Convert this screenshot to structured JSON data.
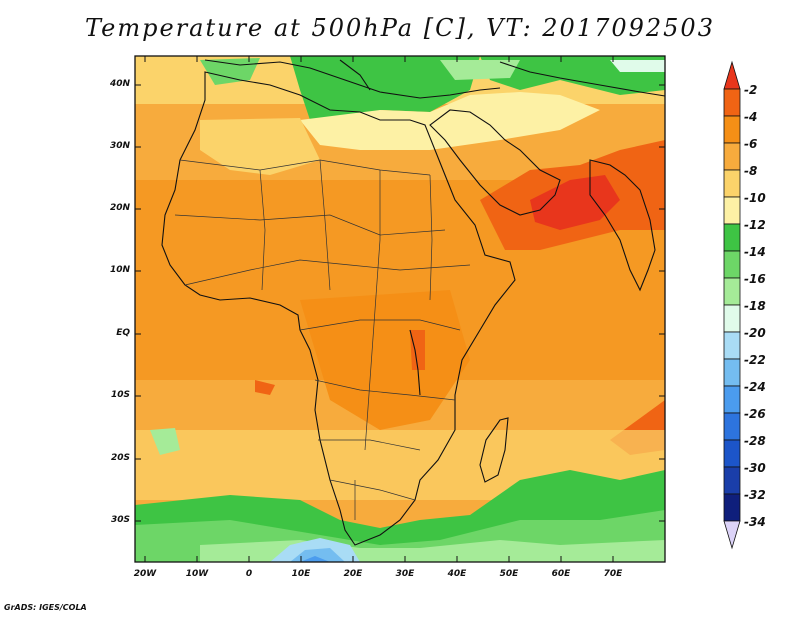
{
  "title": "Temperature at 500hPa [C], VT: 2017092503",
  "credit": "GrADS: IGES/COLA",
  "lat_ticks": [
    "40N",
    "30N",
    "20N",
    "10N",
    "EQ",
    "10S",
    "20S",
    "30S"
  ],
  "lon_ticks": [
    "20W",
    "10W",
    "0",
    "10E",
    "20E",
    "30E",
    "40E",
    "50E",
    "60E",
    "70E"
  ],
  "colorbar": {
    "labels": [
      "-2",
      "-4",
      "-6",
      "-8",
      "-10",
      "-12",
      "-14",
      "-16",
      "-18",
      "-20",
      "-22",
      "-24",
      "-26",
      "-28",
      "-30",
      "-32",
      "-34"
    ],
    "colors": [
      "#e8361c",
      "#f06414",
      "#f58f16",
      "#f7ab3d",
      "#fbd36a",
      "#fdf1a5",
      "#3ec444",
      "#6dd667",
      "#a5eb98",
      "#e0fbea",
      "#a9dcf5",
      "#74bdf0",
      "#4b9cee",
      "#2d74de",
      "#1c55c9",
      "#1a3ea9",
      "#0f1f7c",
      "#dcd3f8"
    ]
  }
}
